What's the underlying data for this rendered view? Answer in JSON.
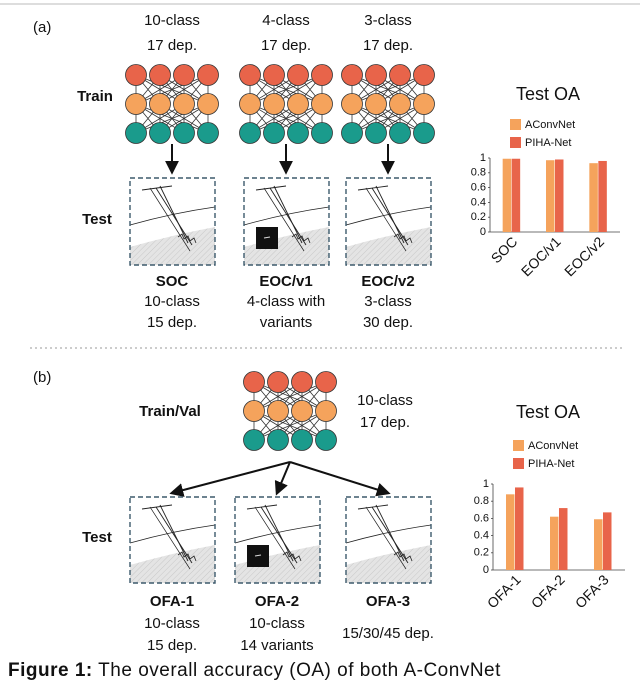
{
  "panel_a": {
    "label": "(a)",
    "train_label": "Train",
    "test_label": "Test",
    "train_headers": [
      [
        "10-class",
        "17 dep."
      ],
      [
        "4-class",
        "17 dep."
      ],
      [
        "3-class",
        "17 dep."
      ]
    ],
    "tests": [
      {
        "name": "SOC",
        "lines": [
          "10-class",
          "15 dep."
        ]
      },
      {
        "name": "EOC/v1",
        "lines": [
          "4-class with",
          "variants"
        ]
      },
      {
        "name": "EOC/v2",
        "lines": [
          "3-class",
          "30 dep."
        ]
      }
    ]
  },
  "panel_b": {
    "label": "(b)",
    "train_label": "Train/Val",
    "train_info": [
      "10-class",
      "17 dep."
    ],
    "test_label": "Test",
    "tests": [
      {
        "name": "OFA-1",
        "lines": [
          "10-class",
          "15 dep."
        ]
      },
      {
        "name": "OFA-2",
        "lines": [
          "10-class",
          "14 variants"
        ]
      },
      {
        "name": "OFA-3",
        "lines": [
          "15/30/45 dep."
        ]
      }
    ]
  },
  "chart_data": [
    {
      "type": "bar",
      "title": "Test OA",
      "categories": [
        "SOC",
        "EOC/v1",
        "EOC/v2"
      ],
      "series": [
        {
          "name": "AConvNet",
          "color": "#f5a35c",
          "values": [
            0.99,
            0.97,
            0.93
          ]
        },
        {
          "name": "PIHA-Net",
          "color": "#e8644a",
          "values": [
            0.99,
            0.98,
            0.96
          ]
        }
      ],
      "ylim": [
        0,
        1
      ],
      "yticks": [
        0,
        0.2,
        0.4,
        0.6,
        0.8,
        1
      ],
      "legend": "top"
    },
    {
      "type": "bar",
      "title": "Test OA",
      "categories": [
        "OFA-1",
        "OFA-2",
        "OFA-3"
      ],
      "series": [
        {
          "name": "AConvNet",
          "color": "#f5a35c",
          "values": [
            0.88,
            0.62,
            0.59
          ]
        },
        {
          "name": "PIHA-Net",
          "color": "#e8644a",
          "values": [
            0.96,
            0.72,
            0.67
          ]
        }
      ],
      "ylim": [
        0,
        1
      ],
      "yticks": [
        0,
        0.2,
        0.4,
        0.6,
        0.8,
        1
      ],
      "legend": "top"
    }
  ],
  "caption": {
    "label": "Figure 1:",
    "text": "The overall accuracy (OA) of both A-ConvNet"
  }
}
